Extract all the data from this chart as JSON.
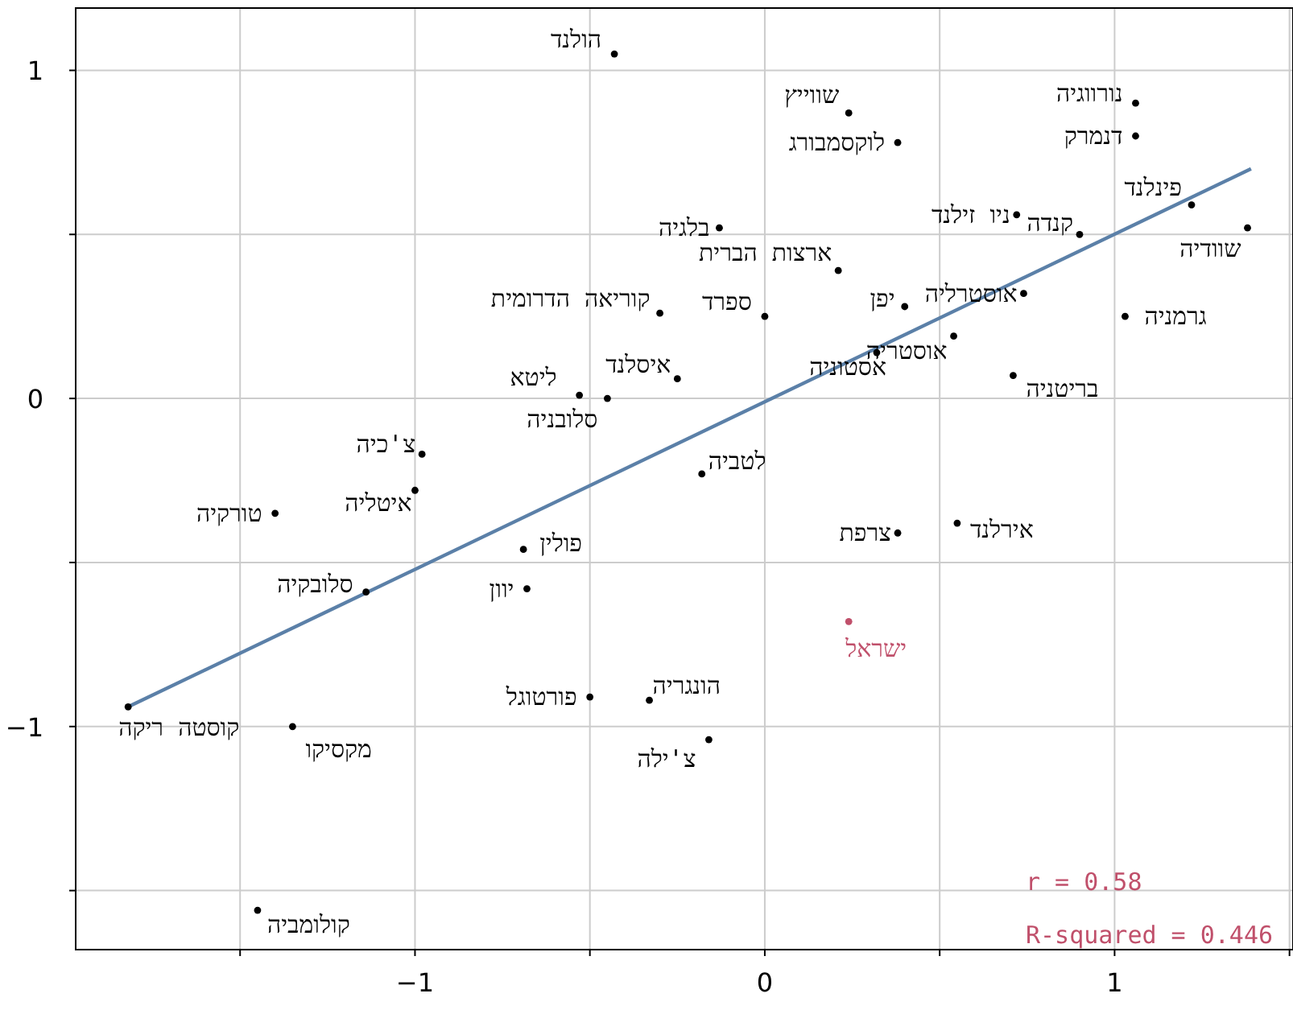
{
  "chart_data": {
    "type": "scatter",
    "xlim": [
      -1.97,
      1.51
    ],
    "ylim": [
      -1.68,
      1.19
    ],
    "xticks": [
      {
        "value": -1.5,
        "label": null
      },
      -1,
      {
        "value": -0.5,
        "label": null
      },
      0,
      {
        "value": 0.5,
        "label": null
      },
      1,
      {
        "value": 1.5,
        "label": null
      }
    ],
    "yticks": [
      {
        "value": -1.5,
        "label": null
      },
      -1,
      {
        "value": -0.5,
        "label": null
      },
      0,
      {
        "value": 0.5,
        "label": null
      },
      1
    ],
    "grid": true,
    "series": [
      {
        "type": "scatter",
        "color": "#000000",
        "x": [
          -0.43,
          0.24,
          0.38,
          1.06,
          1.06,
          1.22,
          1.38,
          0.9,
          0.72,
          -0.13,
          0.21,
          0.4,
          0.74,
          1.03,
          0.0,
          -0.3,
          0.54,
          0.32,
          0.71,
          -0.25,
          -0.53,
          -0.45,
          -0.98,
          -1.0,
          -1.4,
          -0.18,
          -0.69,
          -0.68,
          -1.14,
          0.38,
          0.55,
          0.24,
          -1.82,
          -1.35,
          -0.5,
          -0.33,
          -0.16,
          -1.45
        ],
        "values": [
          1.05,
          0.87,
          0.78,
          0.9,
          0.8,
          0.59,
          0.52,
          0.5,
          0.56,
          0.52,
          0.39,
          0.28,
          0.32,
          0.25,
          0.25,
          0.26,
          0.19,
          0.14,
          0.07,
          0.06,
          0.01,
          0.0,
          -0.17,
          -0.28,
          -0.35,
          -0.23,
          -0.46,
          -0.58,
          -0.59,
          -0.41,
          -0.38,
          -0.68,
          -0.94,
          -1.0,
          -0.91,
          -0.92,
          -1.04,
          -1.56
        ],
        "colors": [
          "#000000",
          "#000000",
          "#000000",
          "#000000",
          "#000000",
          "#000000",
          "#000000",
          "#000000",
          "#000000",
          "#000000",
          "#000000",
          "#000000",
          "#000000",
          "#000000",
          "#000000",
          "#000000",
          "#000000",
          "#000000",
          "#000000",
          "#000000",
          "#000000",
          "#000000",
          "#000000",
          "#000000",
          "#000000",
          "#000000",
          "#000000",
          "#000000",
          "#000000",
          "#000000",
          "#000000",
          "#c0506b",
          "#000000",
          "#000000",
          "#000000",
          "#000000",
          "#000000",
          "#000000"
        ]
      },
      {
        "type": "line",
        "color": "#5b80a8",
        "x": [
          -1.82,
          1.39
        ],
        "values": [
          -0.94,
          0.7
        ]
      }
    ],
    "annotations": [
      {
        "text": "הולנד",
        "x": -0.43,
        "y": 1.05
      },
      {
        "text": "שווייץ",
        "x": 0.24,
        "y": 0.87
      },
      {
        "text": "לוקסמבורג",
        "x": 0.38,
        "y": 0.78
      },
      {
        "text": "נורווגיה",
        "x": 1.06,
        "y": 0.9
      },
      {
        "text": "דנמרק",
        "x": 1.06,
        "y": 0.8
      },
      {
        "text": "פינלנד",
        "x": 1.22,
        "y": 0.59
      },
      {
        "text": "שוודיה",
        "x": 1.38,
        "y": 0.52
      },
      {
        "text": "קנדה",
        "x": 0.9,
        "y": 0.5
      },
      {
        "text": "ניו זילנד",
        "x": 0.72,
        "y": 0.56
      },
      {
        "text": "בלגיה",
        "x": -0.13,
        "y": 0.52
      },
      {
        "text": "ארצות הברית",
        "x": 0.21,
        "y": 0.39
      },
      {
        "text": "יפן",
        "x": 0.4,
        "y": 0.28
      },
      {
        "text": "אוסטרליה",
        "x": 0.74,
        "y": 0.32
      },
      {
        "text": "גרמניה",
        "x": 1.03,
        "y": 0.25
      },
      {
        "text": "ספרד",
        "x": 0.0,
        "y": 0.25
      },
      {
        "text": "קוריאה הדרומית",
        "x": -0.3,
        "y": 0.26
      },
      {
        "text": "אוסטריה",
        "x": 0.54,
        "y": 0.19
      },
      {
        "text": "אסטוניה",
        "x": 0.32,
        "y": 0.14
      },
      {
        "text": "בריטניה",
        "x": 0.71,
        "y": 0.07
      },
      {
        "text": "איסלנד",
        "x": -0.25,
        "y": 0.06
      },
      {
        "text": "ליטא",
        "x": -0.53,
        "y": 0.01
      },
      {
        "text": "סלובניה",
        "x": -0.45,
        "y": 0.0
      },
      {
        "text": "צ'כיה",
        "x": -0.98,
        "y": -0.17
      },
      {
        "text": "איטליה",
        "x": -1.0,
        "y": -0.28
      },
      {
        "text": "טורקיה",
        "x": -1.4,
        "y": -0.35
      },
      {
        "text": "לטביה",
        "x": -0.18,
        "y": -0.23
      },
      {
        "text": "פולין",
        "x": -0.69,
        "y": -0.46
      },
      {
        "text": "יוון",
        "x": -0.68,
        "y": -0.58
      },
      {
        "text": "סלובקיה",
        "x": -1.14,
        "y": -0.59
      },
      {
        "text": "צרפת",
        "x": 0.38,
        "y": -0.41
      },
      {
        "text": "אירלנד",
        "x": 0.55,
        "y": -0.38
      },
      {
        "text": "ישראל",
        "x": 0.24,
        "y": -0.68
      },
      {
        "text": "קוסטה ריקה",
        "x": -1.82,
        "y": -0.94
      },
      {
        "text": "מקסיקו",
        "x": -1.35,
        "y": -1.0
      },
      {
        "text": "פורטוגל",
        "x": -0.5,
        "y": -0.91
      },
      {
        "text": "הונגריה",
        "x": -0.33,
        "y": -0.92
      },
      {
        "text": "צ'ילה",
        "x": -0.16,
        "y": -1.04
      },
      {
        "text": "קולומביה",
        "x": -1.45,
        "y": -1.56
      },
      "r = 0.58",
      "R-squared = 0.446"
    ]
  }
}
